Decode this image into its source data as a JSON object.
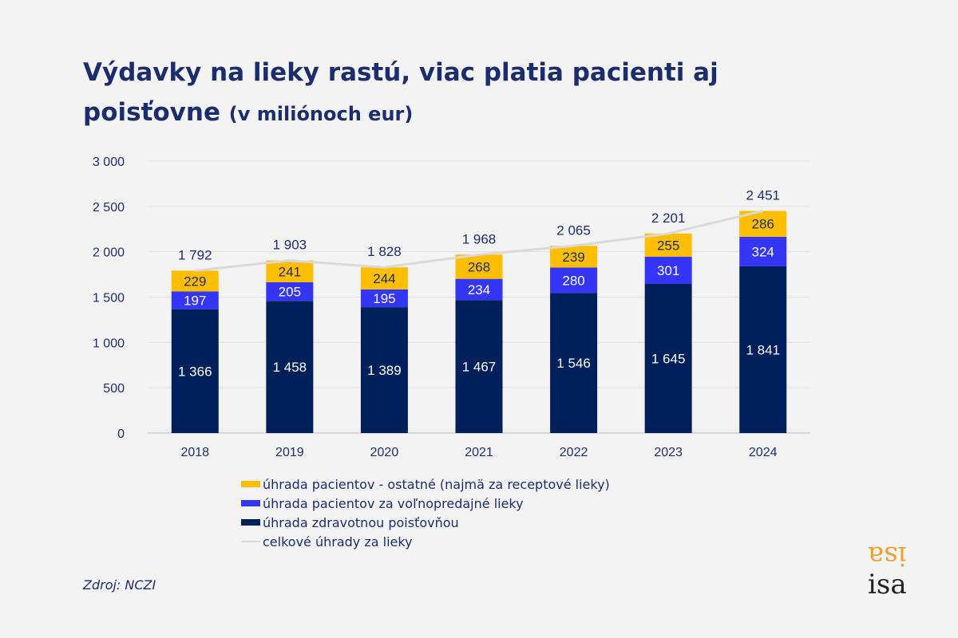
{
  "title": "Výdavky na lieky rastú, viac platia pacienti aj poisťovne",
  "subtitle": "(v miliónoch eur)",
  "source": "Zdroj: NCZI",
  "logo": "isa",
  "colors": {
    "other": "#ffbf00",
    "otc": "#3535f5",
    "insurer": "#00205b",
    "total_line": "#d9d9d9",
    "text": "#1c2d6e"
  },
  "chart_data": {
    "type": "bar",
    "stacked": true,
    "categories": [
      "2018",
      "2019",
      "2020",
      "2021",
      "2022",
      "2023",
      "2024"
    ],
    "series": [
      {
        "name": "úhrada zdravotnou poisťovňou",
        "key": "insurer",
        "values": [
          1366,
          1458,
          1389,
          1467,
          1546,
          1645,
          1841
        ],
        "labels": [
          "1 366",
          "1 458",
          "1 389",
          "1 467",
          "1 546",
          "1 645",
          "1 841"
        ]
      },
      {
        "name": "úhrada pacientov za voľnopredajné lieky",
        "key": "otc",
        "values": [
          197,
          205,
          195,
          234,
          280,
          301,
          324
        ],
        "labels": [
          "197",
          "205",
          "195",
          "234",
          "280",
          "301",
          "324"
        ]
      },
      {
        "name": "úhrada pacientov - ostatné (najmä za receptové lieky)",
        "key": "other",
        "values": [
          229,
          241,
          244,
          268,
          239,
          255,
          286
        ],
        "labels": [
          "229",
          "241",
          "244",
          "268",
          "239",
          "255",
          "286"
        ]
      }
    ],
    "line": {
      "name": "celkové úhrady za lieky",
      "values": [
        1792,
        1903,
        1828,
        1968,
        2065,
        2201,
        2451
      ],
      "labels": [
        "1 792",
        "1 903",
        "1 828",
        "1 968",
        "2 065",
        "2 201",
        "2 451"
      ]
    },
    "ylim": [
      0,
      3000
    ],
    "yticks": [
      0,
      500,
      1000,
      1500,
      2000,
      2500,
      3000
    ],
    "ytick_labels": [
      "0",
      "500",
      "1 000",
      "1 500",
      "2 000",
      "2 500",
      "3 000"
    ],
    "grid": true,
    "legend": [
      {
        "label": "úhrada pacientov - ostatné (najmä za receptové lieky)",
        "key": "other",
        "kind": "box"
      },
      {
        "label": "úhrada pacientov za voľnopredajné lieky",
        "key": "otc",
        "kind": "box"
      },
      {
        "label": "úhrada zdravotnou poisťovňou",
        "key": "insurer",
        "kind": "box"
      },
      {
        "label": "celkové úhrady za lieky",
        "key": "total_line",
        "kind": "line"
      }
    ],
    "legend_position": "bottom"
  }
}
